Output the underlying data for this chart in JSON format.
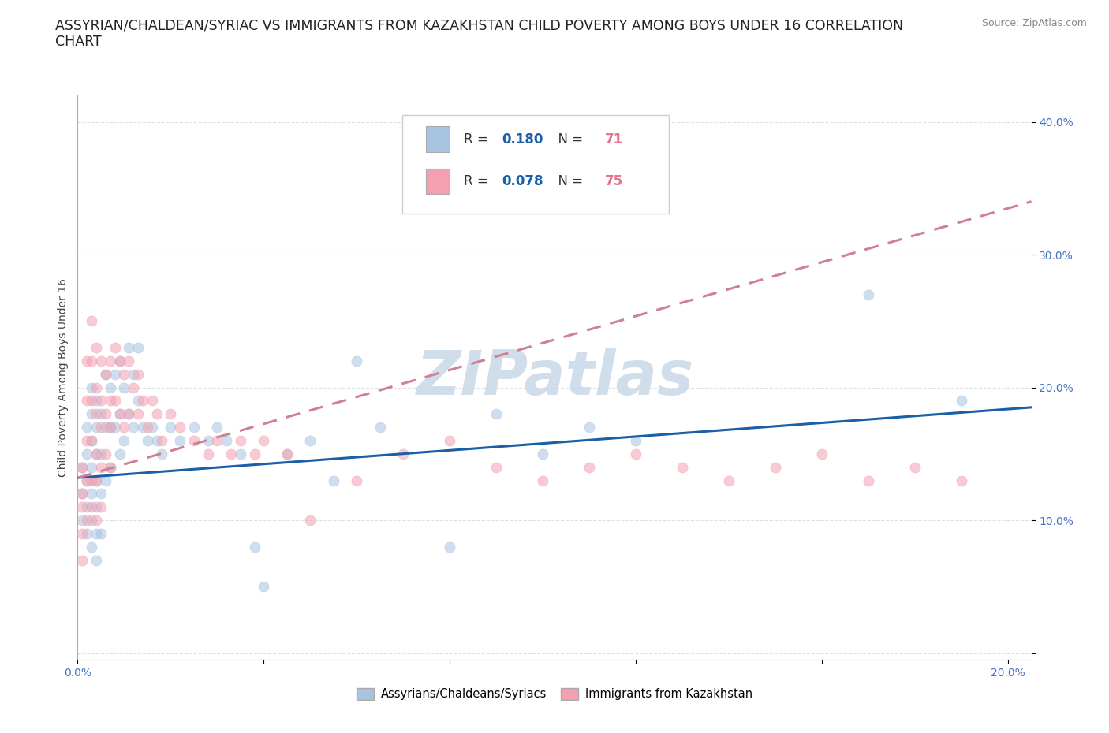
{
  "title": "ASSYRIAN/CHALDEAN/SYRIAC VS IMMIGRANTS FROM KAZAKHSTAN CHILD POVERTY AMONG BOYS UNDER 16 CORRELATION\nCHART",
  "source_text": "Source: ZipAtlas.com",
  "ylabel": "Child Poverty Among Boys Under 16",
  "xlim": [
    0.0,
    0.205
  ],
  "ylim": [
    -0.005,
    0.42
  ],
  "xticks": [
    0.0,
    0.04,
    0.08,
    0.12,
    0.16,
    0.2
  ],
  "yticks": [
    0.0,
    0.1,
    0.2,
    0.3,
    0.4
  ],
  "xticklabels": [
    "0.0%",
    "",
    "",
    "",
    "",
    "20.0%"
  ],
  "yticklabels": [
    "",
    "10.0%",
    "20.0%",
    "30.0%",
    "40.0%"
  ],
  "blue_R": 0.18,
  "blue_N": 71,
  "pink_R": 0.078,
  "pink_N": 75,
  "blue_color": "#a8c4e0",
  "pink_color": "#f4a0b0",
  "blue_line_color": "#1a5fa8",
  "pink_line_color": "#d08090",
  "grid_color": "#e0e0e0",
  "watermark_color": "#c8d8e8",
  "legend_R_color": "#1a5fa8",
  "legend_N_color": "#e87090",
  "blue_scatter_x": [
    0.001,
    0.001,
    0.001,
    0.002,
    0.002,
    0.002,
    0.002,
    0.002,
    0.003,
    0.003,
    0.003,
    0.003,
    0.003,
    0.003,
    0.003,
    0.004,
    0.004,
    0.004,
    0.004,
    0.004,
    0.004,
    0.004,
    0.005,
    0.005,
    0.005,
    0.005,
    0.006,
    0.006,
    0.006,
    0.007,
    0.007,
    0.007,
    0.008,
    0.008,
    0.009,
    0.009,
    0.009,
    0.01,
    0.01,
    0.011,
    0.011,
    0.012,
    0.012,
    0.013,
    0.013,
    0.014,
    0.015,
    0.016,
    0.017,
    0.018,
    0.02,
    0.022,
    0.025,
    0.028,
    0.03,
    0.032,
    0.035,
    0.038,
    0.04,
    0.045,
    0.05,
    0.055,
    0.06,
    0.065,
    0.08,
    0.09,
    0.1,
    0.11,
    0.12,
    0.17,
    0.19
  ],
  "blue_scatter_y": [
    0.14,
    0.12,
    0.1,
    0.17,
    0.15,
    0.13,
    0.11,
    0.09,
    0.2,
    0.18,
    0.16,
    0.14,
    0.12,
    0.1,
    0.08,
    0.19,
    0.17,
    0.15,
    0.13,
    0.11,
    0.09,
    0.07,
    0.18,
    0.15,
    0.12,
    0.09,
    0.21,
    0.17,
    0.13,
    0.2,
    0.17,
    0.14,
    0.21,
    0.17,
    0.22,
    0.18,
    0.15,
    0.2,
    0.16,
    0.23,
    0.18,
    0.21,
    0.17,
    0.23,
    0.19,
    0.17,
    0.16,
    0.17,
    0.16,
    0.15,
    0.17,
    0.16,
    0.17,
    0.16,
    0.17,
    0.16,
    0.15,
    0.08,
    0.05,
    0.15,
    0.16,
    0.13,
    0.22,
    0.17,
    0.08,
    0.18,
    0.15,
    0.17,
    0.16,
    0.27,
    0.19
  ],
  "pink_scatter_x": [
    0.001,
    0.001,
    0.001,
    0.001,
    0.001,
    0.002,
    0.002,
    0.002,
    0.002,
    0.002,
    0.003,
    0.003,
    0.003,
    0.003,
    0.003,
    0.003,
    0.004,
    0.004,
    0.004,
    0.004,
    0.004,
    0.004,
    0.005,
    0.005,
    0.005,
    0.005,
    0.005,
    0.006,
    0.006,
    0.006,
    0.007,
    0.007,
    0.007,
    0.007,
    0.008,
    0.008,
    0.009,
    0.009,
    0.01,
    0.01,
    0.011,
    0.011,
    0.012,
    0.013,
    0.013,
    0.014,
    0.015,
    0.016,
    0.017,
    0.018,
    0.02,
    0.022,
    0.025,
    0.028,
    0.03,
    0.033,
    0.035,
    0.038,
    0.04,
    0.045,
    0.05,
    0.06,
    0.07,
    0.08,
    0.09,
    0.1,
    0.11,
    0.12,
    0.13,
    0.14,
    0.15,
    0.16,
    0.17,
    0.18,
    0.19
  ],
  "pink_scatter_y": [
    0.14,
    0.12,
    0.11,
    0.09,
    0.07,
    0.22,
    0.19,
    0.16,
    0.13,
    0.1,
    0.25,
    0.22,
    0.19,
    0.16,
    0.13,
    0.11,
    0.23,
    0.2,
    0.18,
    0.15,
    0.13,
    0.1,
    0.22,
    0.19,
    0.17,
    0.14,
    0.11,
    0.21,
    0.18,
    0.15,
    0.22,
    0.19,
    0.17,
    0.14,
    0.23,
    0.19,
    0.22,
    0.18,
    0.21,
    0.17,
    0.22,
    0.18,
    0.2,
    0.21,
    0.18,
    0.19,
    0.17,
    0.19,
    0.18,
    0.16,
    0.18,
    0.17,
    0.16,
    0.15,
    0.16,
    0.15,
    0.16,
    0.15,
    0.16,
    0.15,
    0.1,
    0.13,
    0.15,
    0.16,
    0.14,
    0.13,
    0.14,
    0.15,
    0.14,
    0.13,
    0.14,
    0.15,
    0.13,
    0.14,
    0.13
  ],
  "blue_line_x": [
    0.0,
    0.205
  ],
  "blue_line_y": [
    0.132,
    0.185
  ],
  "pink_line_x": [
    0.0,
    0.205
  ],
  "pink_line_y": [
    0.132,
    0.34
  ],
  "background_color": "#ffffff",
  "title_fontsize": 12.5,
  "axis_label_fontsize": 10,
  "tick_fontsize": 10,
  "legend_fontsize": 12,
  "scatter_size": 90,
  "scatter_alpha": 0.55,
  "line_width": 2.2
}
